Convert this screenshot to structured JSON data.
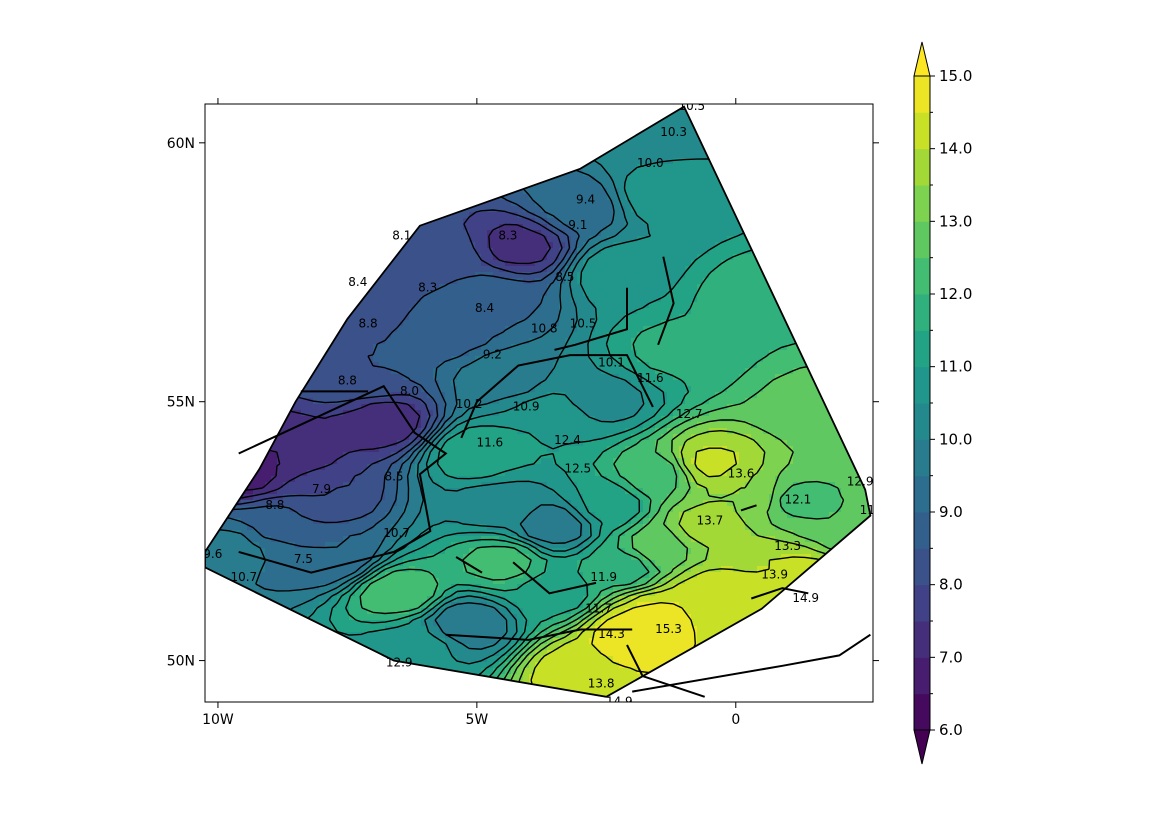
{
  "chart_data": {
    "type": "contour",
    "title": "",
    "xlabel": "",
    "ylabel": "",
    "x_ticks": [
      {
        "value": -10,
        "label": "10W"
      },
      {
        "value": -5,
        "label": "5W"
      },
      {
        "value": 0,
        "label": "0"
      }
    ],
    "y_ticks": [
      {
        "value": 50,
        "label": "50N"
      },
      {
        "value": 55,
        "label": "55N"
      },
      {
        "value": 60,
        "label": "60N"
      }
    ],
    "xlim": [
      -10.25,
      2.65
    ],
    "ylim": [
      49.2,
      60.75
    ],
    "colormap": "viridis",
    "vmin": 6.0,
    "vmax": 15.0,
    "colorbar": {
      "ticks": [
        "6.0",
        "7.0",
        "8.0",
        "9.0",
        "10.0",
        "11.0",
        "12.0",
        "13.0",
        "14.0",
        "15.0"
      ],
      "extend": "both"
    },
    "domain_outline": [
      [
        -10.25,
        52.1
      ],
      [
        -9.2,
        53.7
      ],
      [
        -8.5,
        55.0
      ],
      [
        -7.5,
        56.6
      ],
      [
        -6.1,
        58.4
      ],
      [
        -3.0,
        59.5
      ],
      [
        -1.0,
        60.7
      ],
      [
        2.5,
        53.3
      ],
      [
        2.6,
        52.8
      ],
      [
        0.5,
        51.0
      ],
      [
        -2.5,
        49.3
      ],
      [
        -6.6,
        50.0
      ],
      [
        -10.25,
        51.8
      ]
    ],
    "value_field": [
      {
        "lon": -9.5,
        "lat": 53.6,
        "value": 6.8
      },
      {
        "lon": -8.7,
        "lat": 54.0,
        "value": 7.0
      },
      {
        "lon": -8.0,
        "lat": 53.2,
        "value": 8.0
      },
      {
        "lon": -7.2,
        "lat": 55.5,
        "value": 8.5
      },
      {
        "lon": -6.8,
        "lat": 54.6,
        "value": 7.2
      },
      {
        "lon": -6.5,
        "lat": 57.8,
        "value": 8.1
      },
      {
        "lon": -5.6,
        "lat": 57.8,
        "value": 8.2
      },
      {
        "lon": -4.2,
        "lat": 58.0,
        "value": 7.3
      },
      {
        "lon": -7.2,
        "lat": 56.8,
        "value": 8.3
      },
      {
        "lon": -5.5,
        "lat": 56.3,
        "value": 8.8
      },
      {
        "lon": -4.8,
        "lat": 57.0,
        "value": 8.9
      },
      {
        "lon": -3.0,
        "lat": 58.8,
        "value": 9.2
      },
      {
        "lon": -1.8,
        "lat": 60.2,
        "value": 10.3
      },
      {
        "lon": -1.5,
        "lat": 59.0,
        "value": 10.8
      },
      {
        "lon": -2.2,
        "lat": 57.5,
        "value": 10.9
      },
      {
        "lon": -4.5,
        "lat": 55.5,
        "value": 9.8
      },
      {
        "lon": -3.5,
        "lat": 54.6,
        "value": 11.0
      },
      {
        "lon": -2.6,
        "lat": 55.0,
        "value": 10.3
      },
      {
        "lon": -1.2,
        "lat": 56.0,
        "value": 11.6
      },
      {
        "lon": 0.5,
        "lat": 57.0,
        "value": 11.9
      },
      {
        "lon": 1.5,
        "lat": 55.0,
        "value": 12.6
      },
      {
        "lon": -5.0,
        "lat": 54.0,
        "value": 11.4
      },
      {
        "lon": -4.5,
        "lat": 53.0,
        "value": 10.2
      },
      {
        "lon": -3.5,
        "lat": 52.6,
        "value": 9.6
      },
      {
        "lon": -2.5,
        "lat": 53.0,
        "value": 11.1
      },
      {
        "lon": -1.5,
        "lat": 53.6,
        "value": 12.3
      },
      {
        "lon": -0.5,
        "lat": 53.8,
        "value": 14.1
      },
      {
        "lon": 0.2,
        "lat": 53.2,
        "value": 13.5
      },
      {
        "lon": 1.2,
        "lat": 53.1,
        "value": 12.4
      },
      {
        "lon": -0.6,
        "lat": 52.6,
        "value": 13.7
      },
      {
        "lon": -1.5,
        "lat": 52.2,
        "value": 12.8
      },
      {
        "lon": -2.2,
        "lat": 51.8,
        "value": 11.7
      },
      {
        "lon": -3.5,
        "lat": 51.3,
        "value": 11.2
      },
      {
        "lon": -4.5,
        "lat": 51.9,
        "value": 12.2
      },
      {
        "lon": -5.2,
        "lat": 50.7,
        "value": 9.5
      },
      {
        "lon": -6.0,
        "lat": 50.3,
        "value": 10.6
      },
      {
        "lon": -6.5,
        "lat": 51.3,
        "value": 12.4
      },
      {
        "lon": -7.8,
        "lat": 52.0,
        "value": 9.0
      },
      {
        "lon": -9.0,
        "lat": 52.6,
        "value": 8.9
      },
      {
        "lon": -9.7,
        "lat": 52.2,
        "value": 9.7
      },
      {
        "lon": -3.0,
        "lat": 49.8,
        "value": 14.4
      },
      {
        "lon": -2.0,
        "lat": 50.5,
        "value": 14.9
      },
      {
        "lon": -0.5,
        "lat": 51.3,
        "value": 14.3
      },
      {
        "lon": 0.5,
        "lat": 51.7,
        "value": 14.0
      },
      {
        "lon": 1.3,
        "lat": 51.6,
        "value": 14.2
      },
      {
        "lon": 2.2,
        "lat": 52.6,
        "value": 12.5
      },
      {
        "lon": -1.5,
        "lat": 50.9,
        "value": 14.6
      }
    ],
    "contour_labels": [
      {
        "text": "10.5",
        "lon": -0.85,
        "lat": 60.7
      },
      {
        "text": "10.3",
        "lon": -1.2,
        "lat": 60.2
      },
      {
        "text": "10.0",
        "lon": -1.65,
        "lat": 59.6
      },
      {
        "text": "9.4",
        "lon": -2.9,
        "lat": 58.9
      },
      {
        "text": "9.1",
        "lon": -3.05,
        "lat": 58.4
      },
      {
        "text": "8.1",
        "lon": -6.45,
        "lat": 58.2
      },
      {
        "text": "8.3",
        "lon": -4.4,
        "lat": 58.2
      },
      {
        "text": "8.3",
        "lon": -5.95,
        "lat": 57.2
      },
      {
        "text": "8.4",
        "lon": -7.3,
        "lat": 57.3
      },
      {
        "text": "8.4",
        "lon": -4.85,
        "lat": 56.8
      },
      {
        "text": "8.5",
        "lon": -3.3,
        "lat": 57.4
      },
      {
        "text": "8.8",
        "lon": -7.1,
        "lat": 56.5
      },
      {
        "text": "10.8",
        "lon": -3.7,
        "lat": 56.4
      },
      {
        "text": "10.5",
        "lon": -2.95,
        "lat": 56.5
      },
      {
        "text": "9.2",
        "lon": -4.7,
        "lat": 55.9
      },
      {
        "text": "10.1",
        "lon": -2.4,
        "lat": 55.75
      },
      {
        "text": "11.6",
        "lon": -1.65,
        "lat": 55.45
      },
      {
        "text": "8.8",
        "lon": -7.5,
        "lat": 55.4
      },
      {
        "text": "8.0",
        "lon": -6.3,
        "lat": 55.2
      },
      {
        "text": "10.2",
        "lon": -5.15,
        "lat": 54.95
      },
      {
        "text": "10.9",
        "lon": -4.05,
        "lat": 54.9
      },
      {
        "text": "11.6",
        "lon": -4.75,
        "lat": 54.2
      },
      {
        "text": "12.4",
        "lon": -3.25,
        "lat": 54.25
      },
      {
        "text": "12.5",
        "lon": -3.05,
        "lat": 53.7
      },
      {
        "text": "8.5",
        "lon": -6.6,
        "lat": 53.55
      },
      {
        "text": "7.9",
        "lon": -8.0,
        "lat": 53.3
      },
      {
        "text": "8.8",
        "lon": -8.9,
        "lat": 53.0
      },
      {
        "text": "10.7",
        "lon": -6.55,
        "lat": 52.45
      },
      {
        "text": "7.5",
        "lon": -8.35,
        "lat": 51.95
      },
      {
        "text": "9.6",
        "lon": -10.1,
        "lat": 52.05
      },
      {
        "text": "10.7",
        "lon": -9.5,
        "lat": 51.6
      },
      {
        "text": "12.9",
        "lon": -6.5,
        "lat": 49.95
      },
      {
        "text": "11.9",
        "lon": -2.55,
        "lat": 51.6
      },
      {
        "text": "11.7",
        "lon": -2.65,
        "lat": 51.0
      },
      {
        "text": "14.3",
        "lon": -2.4,
        "lat": 50.5
      },
      {
        "text": "15.3",
        "lon": -1.3,
        "lat": 50.6
      },
      {
        "text": "13.8",
        "lon": -2.6,
        "lat": 49.55
      },
      {
        "text": "14.9",
        "lon": -2.25,
        "lat": 49.2
      },
      {
        "text": "12.7",
        "lon": -0.9,
        "lat": 54.75
      },
      {
        "text": "13.6",
        "lon": 0.1,
        "lat": 53.6
      },
      {
        "text": "13.7",
        "lon": -0.5,
        "lat": 52.7
      },
      {
        "text": "13.3",
        "lon": 1.0,
        "lat": 52.2
      },
      {
        "text": "13.9",
        "lon": 0.75,
        "lat": 51.65
      },
      {
        "text": "14.9",
        "lon": 1.35,
        "lat": 51.2
      },
      {
        "text": "12.9",
        "lon": 2.4,
        "lat": 53.45
      },
      {
        "text": "11.6",
        "lon": 2.65,
        "lat": 52.9
      },
      {
        "text": "12.1",
        "lon": 1.2,
        "lat": 53.1
      }
    ],
    "coastline_segments": [
      [
        [
          -9.6,
          54.0
        ],
        [
          -6.8,
          55.3
        ],
        [
          -6.2,
          54.4
        ],
        [
          -5.6,
          54.0
        ],
        [
          -6.1,
          53.6
        ],
        [
          -5.9,
          52.5
        ],
        [
          -6.6,
          52.1
        ],
        [
          -8.2,
          51.7
        ],
        [
          -9.6,
          52.1
        ]
      ],
      [
        [
          -8.4,
          55.2
        ],
        [
          -7.1,
          55.2
        ]
      ],
      [
        [
          -5.3,
          54.3
        ],
        [
          -5.0,
          55.0
        ],
        [
          -4.2,
          55.7
        ],
        [
          -3.2,
          55.9
        ],
        [
          -2.1,
          55.9
        ],
        [
          -1.6,
          54.9
        ]
      ],
      [
        [
          -4.3,
          51.9
        ],
        [
          -3.6,
          51.3
        ],
        [
          -2.7,
          51.5
        ]
      ],
      [
        [
          -4.9,
          51.7
        ],
        [
          -5.4,
          52.0
        ]
      ],
      [
        [
          -5.6,
          50.5
        ],
        [
          -4.0,
          50.4
        ],
        [
          -3.0,
          50.6
        ],
        [
          -2.0,
          50.6
        ]
      ],
      [
        [
          -2.1,
          57.2
        ],
        [
          -2.1,
          56.4
        ],
        [
          -3.1,
          56.1
        ],
        [
          -3.5,
          56.0
        ]
      ],
      [
        [
          -1.5,
          56.1
        ],
        [
          -1.2,
          56.9
        ],
        [
          -1.4,
          57.8
        ]
      ],
      [
        [
          -2.0,
          49.4
        ],
        [
          0.9,
          49.9
        ],
        [
          2.0,
          50.1
        ],
        [
          2.6,
          50.5
        ]
      ],
      [
        [
          -2.1,
          50.3
        ],
        [
          -1.8,
          49.7
        ],
        [
          -0.6,
          49.3
        ]
      ],
      [
        [
          0.3,
          51.2
        ],
        [
          0.9,
          51.4
        ],
        [
          1.4,
          51.3
        ]
      ],
      [
        [
          0.1,
          52.9
        ],
        [
          0.4,
          53.0
        ]
      ]
    ]
  }
}
